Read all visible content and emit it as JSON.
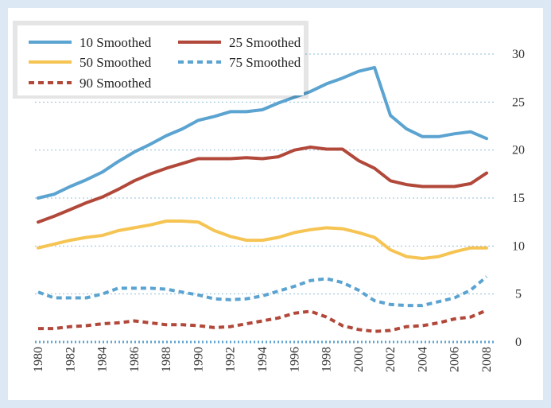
{
  "chart_data": {
    "type": "line",
    "title": "",
    "xlabel": "",
    "ylabel": "",
    "x": [
      1980,
      1981,
      1982,
      1983,
      1984,
      1985,
      1986,
      1987,
      1988,
      1989,
      1990,
      1991,
      1992,
      1993,
      1994,
      1995,
      1996,
      1997,
      1998,
      1999,
      2000,
      2001,
      2002,
      2003,
      2004,
      2005,
      2006,
      2007,
      2008
    ],
    "x_ticks": [
      "1980",
      "1982",
      "1984",
      "1986",
      "1988",
      "1990",
      "1992",
      "1994",
      "1996",
      "1998",
      "2000",
      "2002",
      "2004",
      "2006",
      "2008"
    ],
    "y_ticks": [
      "0",
      "5",
      "10",
      "15",
      "20",
      "25",
      "30"
    ],
    "ylim": [
      0,
      30
    ],
    "grid": "horizontal dotted",
    "y_axis_side": "right",
    "legend_position": "top-left",
    "series": [
      {
        "name": "10 Smoothed",
        "color": "#5ba3d0",
        "style": "solid",
        "values": [
          15.0,
          15.4,
          16.2,
          16.9,
          17.7,
          18.8,
          19.8,
          20.6,
          21.5,
          22.2,
          23.1,
          23.5,
          24.0,
          24.0,
          24.2,
          24.9,
          25.5,
          26.1,
          26.9,
          27.5,
          28.2,
          28.6,
          23.6,
          22.2,
          21.4,
          21.4,
          21.7,
          21.9,
          21.2
        ]
      },
      {
        "name": "25 Smoothed",
        "color": "#b1483a",
        "style": "solid",
        "values": [
          12.5,
          13.1,
          13.8,
          14.5,
          15.1,
          15.9,
          16.8,
          17.5,
          18.1,
          18.6,
          19.1,
          19.1,
          19.1,
          19.2,
          19.1,
          19.3,
          20.0,
          20.3,
          20.1,
          20.1,
          18.9,
          18.1,
          16.8,
          16.4,
          16.2,
          16.2,
          16.2,
          16.5,
          17.6
        ]
      },
      {
        "name": "50 Smoothed",
        "color": "#f5c453",
        "style": "solid",
        "values": [
          9.8,
          10.2,
          10.6,
          10.9,
          11.1,
          11.6,
          11.9,
          12.2,
          12.6,
          12.6,
          12.5,
          11.6,
          11.0,
          10.6,
          10.6,
          10.9,
          11.4,
          11.7,
          11.9,
          11.8,
          11.4,
          10.9,
          9.6,
          8.9,
          8.7,
          8.9,
          9.4,
          9.8,
          9.8
        ]
      },
      {
        "name": "75 Smoothed",
        "color": "#5ba3d0",
        "style": "dashed",
        "values": [
          5.2,
          4.6,
          4.6,
          4.6,
          5.0,
          5.6,
          5.6,
          5.6,
          5.5,
          5.2,
          4.9,
          4.5,
          4.4,
          4.5,
          4.8,
          5.3,
          5.8,
          6.4,
          6.6,
          6.2,
          5.4,
          4.3,
          3.9,
          3.8,
          3.8,
          4.2,
          4.6,
          5.4,
          6.8
        ]
      },
      {
        "name": "90 Smoothed",
        "color": "#b1483a",
        "style": "dashed",
        "values": [
          1.4,
          1.4,
          1.6,
          1.7,
          1.9,
          2.0,
          2.2,
          2.0,
          1.8,
          1.8,
          1.7,
          1.5,
          1.6,
          1.9,
          2.2,
          2.5,
          3.0,
          3.2,
          2.6,
          1.7,
          1.3,
          1.1,
          1.2,
          1.6,
          1.7,
          2.0,
          2.4,
          2.6,
          3.3
        ]
      }
    ]
  }
}
